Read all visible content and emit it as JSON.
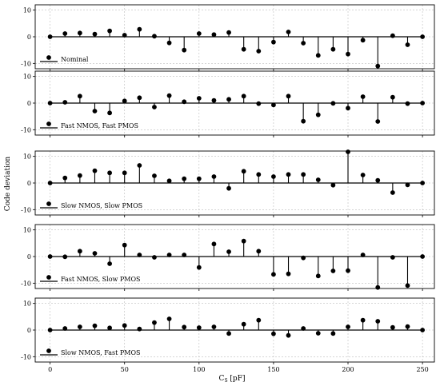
{
  "chart_data": {
    "type": "stem",
    "ylabel": "Code deviation",
    "xlabel": "C",
    "xlabel_sub": "S",
    "xlabel_unit": " [pF]",
    "xlim": [
      -10,
      258
    ],
    "ylim": [
      -12,
      12
    ],
    "x_ticks": [
      0,
      50,
      100,
      150,
      200,
      250
    ],
    "y_ticks": [
      -10,
      0,
      10
    ],
    "grid": true,
    "legend_position": "bottom-left",
    "x": [
      0,
      10,
      20,
      30,
      40,
      50,
      60,
      70,
      80,
      90,
      100,
      110,
      120,
      130,
      140,
      150,
      160,
      170,
      180,
      190,
      200,
      210,
      220,
      230,
      240,
      250
    ],
    "panels": [
      {
        "name": "Nominal",
        "values": [
          0,
          1.2,
          1.4,
          1.0,
          2.2,
          0.6,
          2.8,
          0.2,
          -2.3,
          -5.0,
          1.2,
          0.8,
          1.6,
          -4.7,
          -5.4,
          -2.0,
          1.8,
          -2.4,
          -7.0,
          -4.7,
          -6.5,
          -1.3,
          -11.0,
          0.4,
          -3.0,
          0
        ]
      },
      {
        "name": "Fast NMOS, Fast PMOS",
        "values": [
          0,
          0.3,
          2.6,
          -3.0,
          -3.7,
          0.8,
          2.0,
          -1.5,
          2.8,
          0.5,
          1.8,
          1.0,
          1.4,
          2.6,
          -0.2,
          -0.7,
          2.6,
          -6.8,
          -4.4,
          -0.1,
          -1.9,
          2.4,
          -6.9,
          2.2,
          -0.2,
          0
        ]
      },
      {
        "name": "Slow NMOS, Slow PMOS",
        "values": [
          0,
          1.9,
          2.8,
          4.6,
          3.8,
          3.8,
          6.6,
          2.7,
          0.8,
          1.6,
          1.6,
          2.4,
          -2.0,
          4.4,
          3.2,
          2.4,
          3.2,
          3.2,
          1.2,
          -0.8,
          11.7,
          3.0,
          1.0,
          -3.6,
          -0.7,
          0
        ]
      },
      {
        "name": "Fast NMOS, Slow PMOS",
        "values": [
          0,
          -0.1,
          2.0,
          1.2,
          -2.7,
          4.3,
          0.6,
          -0.3,
          0.6,
          0.6,
          -4.1,
          4.7,
          1.8,
          5.8,
          2.0,
          -6.7,
          -6.5,
          -0.5,
          -7.3,
          -5.4,
          -5.3,
          0.6,
          -11.6,
          -0.3,
          -10.9,
          0
        ]
      },
      {
        "name": "Slow NMOS, Fast PMOS",
        "values": [
          0,
          0.6,
          1.2,
          1.6,
          0.8,
          1.7,
          0.4,
          2.8,
          4.2,
          1.1,
          0.9,
          1.2,
          -1.3,
          2.2,
          3.7,
          -1.4,
          -2.0,
          0.6,
          -1.2,
          -1.3,
          1.2,
          3.7,
          3.3,
          1.0,
          1.3,
          0
        ]
      }
    ]
  }
}
